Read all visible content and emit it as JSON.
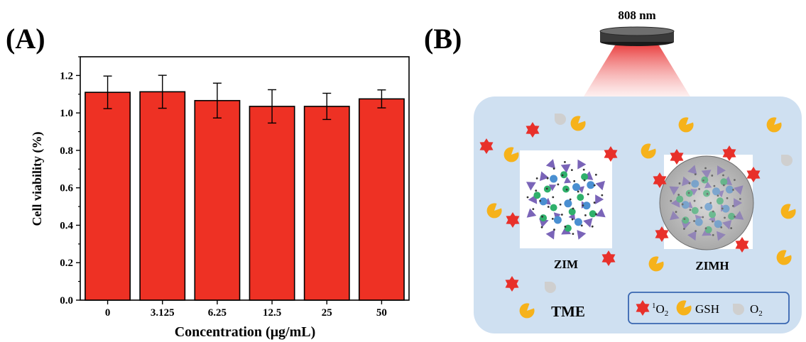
{
  "panel_a": {
    "label": "(A)",
    "chart_data": {
      "type": "bar",
      "categories": [
        "0",
        "3.125",
        "6.25",
        "12.5",
        "25",
        "50"
      ],
      "values": [
        1.11,
        1.113,
        1.066,
        1.035,
        1.035,
        1.075
      ],
      "errors": [
        0.087,
        0.088,
        0.093,
        0.089,
        0.07,
        0.048
      ],
      "xlabel": "Concentration (μg/mL)",
      "ylabel": "Cell viability (%)",
      "ylim": [
        0,
        1.3
      ],
      "yticks": [
        "0.0",
        "0.2",
        "0.4",
        "0.6",
        "0.8",
        "1.0",
        "1.2"
      ],
      "bar_color": "#ee3124",
      "grid": false
    }
  },
  "panel_b": {
    "label": "(B)",
    "laser_label": "808 nm",
    "zim_label": "ZIM",
    "zimh_label": "ZIMH",
    "tme_label": "TME",
    "legend": {
      "singlet_oxygen": {
        "symbol": "star-icon",
        "sup": "1",
        "main": "O",
        "sub": "2"
      },
      "gsh": {
        "symbol": "gsh-icon",
        "text": "GSH"
      },
      "oxygen": {
        "symbol": "oxygen-drop-icon",
        "main": "O",
        "sub": "2"
      }
    },
    "colors": {
      "cell": "#cfe0f1",
      "star": "#e8302a",
      "gsh": "#f6b21b",
      "oxygen": "#cfcfcf",
      "legend_border": "#3a67b1",
      "laser": "#f36b6b"
    }
  }
}
